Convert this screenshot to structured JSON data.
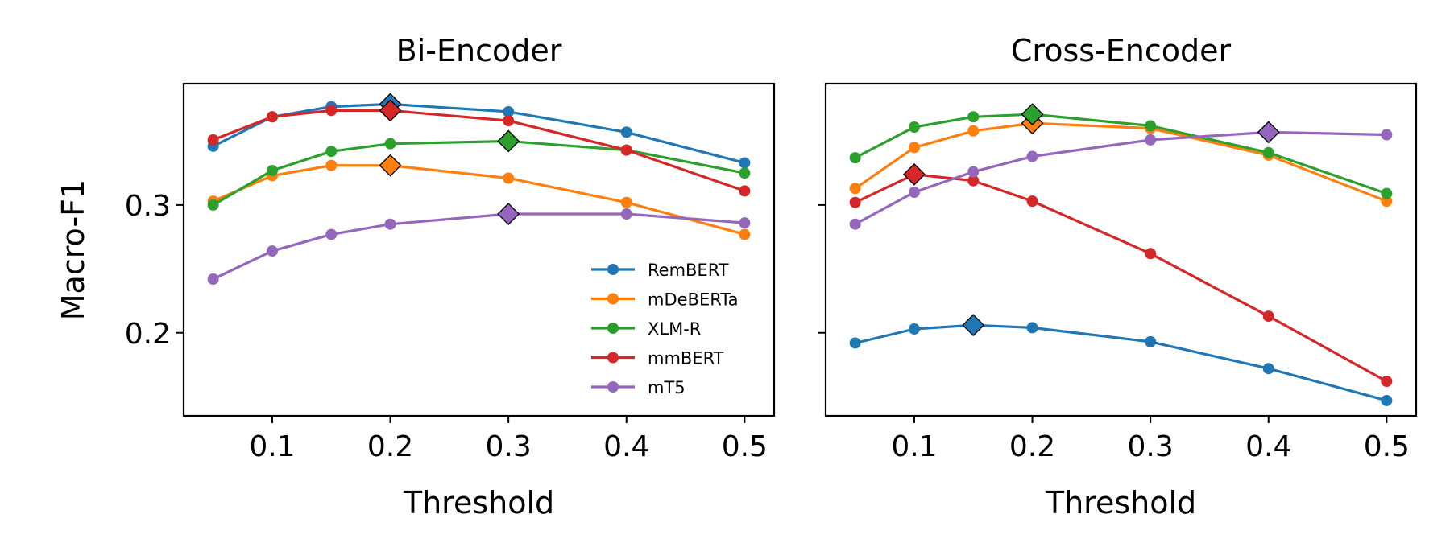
{
  "chart_data": [
    {
      "type": "line",
      "title": "Bi-Encoder",
      "xlabel": "Threshold",
      "ylabel": "Macro-F1",
      "xlim": [
        0.025,
        0.525
      ],
      "ylim": [
        0.135,
        0.395
      ],
      "xticks": [
        0.1,
        0.2,
        0.3,
        0.4,
        0.5
      ],
      "xtick_labels": [
        "0.1",
        "0.2",
        "0.3",
        "0.4",
        "0.5"
      ],
      "yticks": [
        0.2,
        0.3
      ],
      "ytick_labels": [
        "0.2",
        "0.3"
      ],
      "x": [
        0.05,
        0.1,
        0.15,
        0.2,
        0.3,
        0.4,
        0.5
      ],
      "legend": "lower-right",
      "grid": false,
      "series": [
        {
          "name": "RemBERT",
          "color": "#1f77b4",
          "values": [
            0.346,
            0.369,
            0.377,
            0.379,
            0.373,
            0.357,
            0.333
          ],
          "best_x": 0.2
        },
        {
          "name": "mDeBERTa",
          "color": "#ff7f0e",
          "values": [
            0.303,
            0.323,
            0.331,
            0.331,
            0.321,
            0.302,
            0.277
          ],
          "best_x": 0.2
        },
        {
          "name": "XLM-R",
          "color": "#2ca02c",
          "values": [
            0.3,
            0.327,
            0.342,
            0.348,
            0.35,
            0.343,
            0.325
          ],
          "best_x": 0.3
        },
        {
          "name": "mmBERT",
          "color": "#d62728",
          "values": [
            0.351,
            0.369,
            0.374,
            0.374,
            0.366,
            0.343,
            0.311
          ],
          "best_x": 0.2
        },
        {
          "name": "mT5",
          "color": "#9467bd",
          "values": [
            0.242,
            0.264,
            0.277,
            0.285,
            0.293,
            0.293,
            0.286
          ],
          "best_x": 0.3
        }
      ]
    },
    {
      "type": "line",
      "title": "Cross-Encoder",
      "xlabel": "Threshold",
      "ylabel": "",
      "xlim": [
        0.025,
        0.525
      ],
      "ylim": [
        0.135,
        0.395
      ],
      "xticks": [
        0.1,
        0.2,
        0.3,
        0.4,
        0.5
      ],
      "xtick_labels": [
        "0.1",
        "0.2",
        "0.3",
        "0.4",
        "0.5"
      ],
      "yticks": [
        0.2,
        0.3
      ],
      "ytick_labels": [],
      "x": [
        0.05,
        0.1,
        0.15,
        0.2,
        0.3,
        0.4,
        0.5
      ],
      "grid": false,
      "series": [
        {
          "name": "RemBERT",
          "color": "#1f77b4",
          "values": [
            0.192,
            0.203,
            0.206,
            0.204,
            0.193,
            0.172,
            0.147
          ],
          "best_x": 0.15
        },
        {
          "name": "mDeBERTa",
          "color": "#ff7f0e",
          "values": [
            0.313,
            0.345,
            0.358,
            0.364,
            0.36,
            0.339,
            0.303
          ],
          "best_x": 0.2
        },
        {
          "name": "XLM-R",
          "color": "#2ca02c",
          "values": [
            0.337,
            0.361,
            0.369,
            0.371,
            0.362,
            0.341,
            0.309
          ],
          "best_x": 0.2
        },
        {
          "name": "mmBERT",
          "color": "#d62728",
          "values": [
            0.302,
            0.324,
            0.319,
            0.303,
            0.262,
            0.213,
            0.162
          ],
          "best_x": 0.1
        },
        {
          "name": "mT5",
          "color": "#9467bd",
          "values": [
            0.285,
            0.31,
            0.326,
            0.338,
            0.351,
            0.357,
            0.355
          ],
          "best_x": 0.4
        }
      ]
    }
  ]
}
